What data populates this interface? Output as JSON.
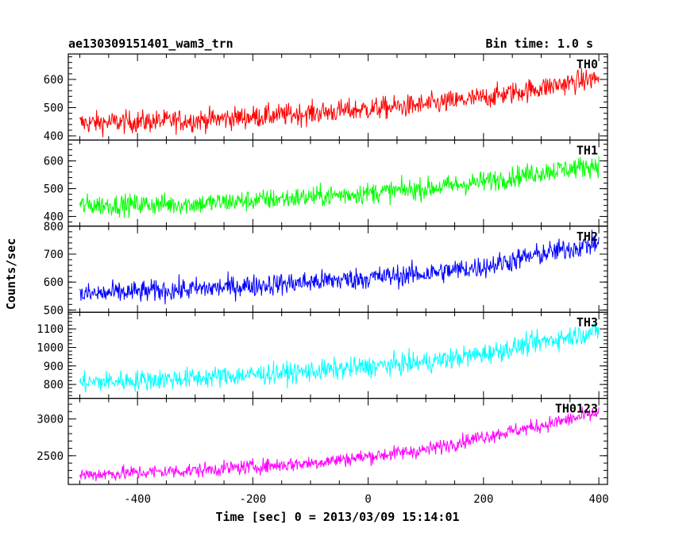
{
  "header": {
    "title": "ae130309151401_wam3_trn",
    "bin_time": "Bin time: 1.0 s"
  },
  "chart_data": {
    "type": "line",
    "xlabel": "Time [sec] 0 = 2013/03/09 15:14:01",
    "ylabel": "Counts/sec",
    "xlim": [
      -520,
      415
    ],
    "xticks": [
      -400,
      -200,
      0,
      200,
      400
    ],
    "grid": false,
    "panels": [
      {
        "name": "TH0",
        "color": "#ff0000",
        "ylim": [
          385,
          690
        ],
        "yticks": [
          400,
          500,
          600
        ],
        "trend_x": [
          -500,
          -300,
          -100,
          100,
          200,
          300,
          400
        ],
        "trend_y": [
          445,
          455,
          480,
          510,
          535,
          570,
          605
        ],
        "noise": 28,
        "noise_min": 385,
        "noise_max": 670
      },
      {
        "name": "TH1",
        "color": "#00ff00",
        "ylim": [
          365,
          675
        ],
        "yticks": [
          400,
          500,
          600
        ],
        "trend_x": [
          -500,
          -300,
          -100,
          100,
          200,
          300,
          400
        ],
        "trend_y": [
          440,
          445,
          470,
          500,
          525,
          560,
          585
        ],
        "noise": 27,
        "noise_min": 365,
        "noise_max": 675
      },
      {
        "name": "TH2",
        "color": "#0000ff",
        "ylim": [
          492,
          800
        ],
        "yticks": [
          500,
          600,
          700,
          800
        ],
        "trend_x": [
          -500,
          -300,
          -100,
          100,
          200,
          300,
          400
        ],
        "trend_y": [
          555,
          575,
          600,
          630,
          655,
          700,
          740
        ],
        "noise": 28,
        "noise_min": 492,
        "noise_max": 800
      },
      {
        "name": "TH3",
        "color": "#00ffff",
        "ylim": [
          725,
          1190
        ],
        "yticks": [
          800,
          900,
          1000,
          1100
        ],
        "trend_x": [
          -500,
          -300,
          -100,
          100,
          200,
          300,
          400
        ],
        "trend_y": [
          810,
          835,
          870,
          920,
          965,
          1030,
          1090
        ],
        "noise": 40,
        "noise_min": 730,
        "noise_max": 1175
      },
      {
        "name": "TH0123",
        "color": "#ff00ff",
        "ylim": [
          2110,
          3280
        ],
        "yticks": [
          2500,
          3000
        ],
        "trend_x": [
          -500,
          -300,
          -100,
          100,
          200,
          300,
          400
        ],
        "trend_y": [
          2240,
          2300,
          2400,
          2580,
          2760,
          2910,
          3080
        ],
        "noise": 70,
        "noise_min": 2150,
        "noise_max": 3250
      }
    ]
  }
}
